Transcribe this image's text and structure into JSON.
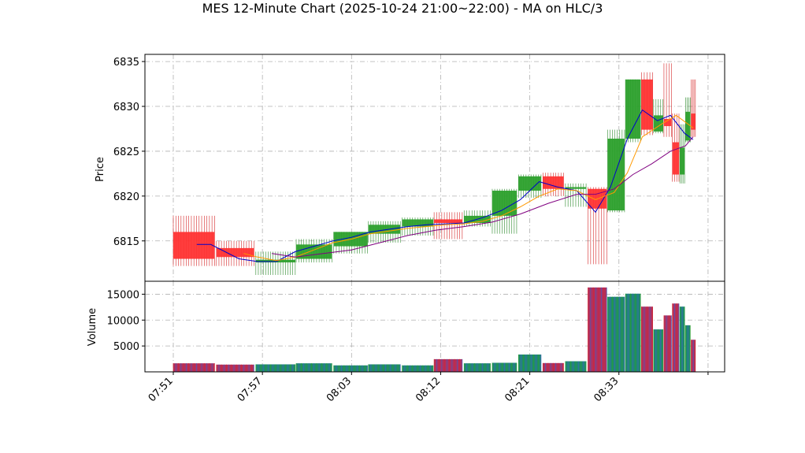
{
  "chart_data": {
    "type": "candlestick",
    "title": "MES 12-Minute Chart (2025-10-24 21:00~22:00) - MA on HLC/3",
    "price_panel": {
      "ylabel": "Price",
      "ylim": [
        6810.5,
        6835.8
      ],
      "yticks": [
        6815,
        6820,
        6825,
        6830,
        6835
      ],
      "grid": true
    },
    "volume_panel": {
      "ylabel": "Volume",
      "ylim": [
        0,
        17500
      ],
      "yticks": [
        5000,
        10000,
        15000
      ],
      "grid": true
    },
    "x_index_range": [
      0,
      56
    ],
    "xticks": [
      {
        "pos": 0,
        "label": "07:51"
      },
      {
        "pos": 9.5,
        "label": "07:57"
      },
      {
        "pos": 19,
        "label": "08:03"
      },
      {
        "pos": 28.5,
        "label": "08:12"
      },
      {
        "pos": 38,
        "label": "08:21"
      },
      {
        "pos": 47.5,
        "label": "08:33"
      },
      {
        "pos": 57,
        "label": ""
      }
    ],
    "candles": [
      {
        "x": 0,
        "w": 4.4,
        "o": 6816.0,
        "h": 6817.8,
        "l": 6812.2,
        "c": 6813.0
      },
      {
        "x": 4.6,
        "w": 4.0,
        "o": 6814.2,
        "h": 6815.0,
        "l": 6812.2,
        "c": 6813.2
      },
      {
        "x": 8.8,
        "w": 4.2,
        "o": 6812.6,
        "h": 6813.8,
        "l": 6811.2,
        "c": 6812.9
      },
      {
        "x": 13.1,
        "w": 3.8,
        "o": 6813.0,
        "h": 6815.2,
        "l": 6812.6,
        "c": 6814.6
      },
      {
        "x": 17.1,
        "w": 3.6,
        "o": 6814.4,
        "h": 6816.0,
        "l": 6813.6,
        "c": 6816.0
      },
      {
        "x": 20.8,
        "w": 3.4,
        "o": 6815.8,
        "h": 6817.2,
        "l": 6814.8,
        "c": 6816.8
      },
      {
        "x": 24.4,
        "w": 3.3,
        "o": 6816.6,
        "h": 6817.6,
        "l": 6815.6,
        "c": 6817.4
      },
      {
        "x": 27.8,
        "w": 3.0,
        "o": 6817.4,
        "h": 6818.2,
        "l": 6815.2,
        "c": 6817.0
      },
      {
        "x": 31.0,
        "w": 2.8,
        "o": 6817.0,
        "h": 6818.4,
        "l": 6816.6,
        "c": 6817.8
      },
      {
        "x": 34.0,
        "w": 2.6,
        "o": 6817.8,
        "h": 6820.8,
        "l": 6815.8,
        "c": 6820.6
      },
      {
        "x": 36.8,
        "w": 2.4,
        "o": 6820.6,
        "h": 6822.4,
        "l": 6819.8,
        "c": 6822.2
      },
      {
        "x": 39.4,
        "w": 2.2,
        "o": 6822.2,
        "h": 6822.6,
        "l": 6820.0,
        "c": 6820.8
      },
      {
        "x": 41.8,
        "w": 2.2,
        "o": 6820.8,
        "h": 6821.4,
        "l": 6818.8,
        "c": 6821.0
      },
      {
        "x": 44.2,
        "w": 2.0,
        "o": 6820.8,
        "h": 6821.0,
        "l": 6812.4,
        "c": 6818.6
      },
      {
        "x": 46.3,
        "w": 1.8,
        "o": 6818.4,
        "h": 6827.4,
        "l": 6818.2,
        "c": 6826.4
      },
      {
        "x": 48.2,
        "w": 1.6,
        "o": 6826.4,
        "h": 6833.0,
        "l": 6826.0,
        "c": 6833.0
      },
      {
        "x": 49.9,
        "w": 1.2,
        "o": 6833.0,
        "h": 6833.8,
        "l": 6826.8,
        "c": 6827.4
      },
      {
        "x": 51.2,
        "w": 1.0,
        "o": 6827.2,
        "h": 6830.8,
        "l": 6827.0,
        "c": 6829.0
      },
      {
        "x": 52.3,
        "w": 0.8,
        "o": 6828.6,
        "h": 6834.8,
        "l": 6826.6,
        "c": 6827.8
      },
      {
        "x": 53.2,
        "w": 0.7,
        "o": 6826.0,
        "h": 6829.2,
        "l": 6821.6,
        "c": 6822.4
      },
      {
        "x": 54.0,
        "w": 0.5,
        "o": 6822.4,
        "h": 6828.0,
        "l": 6821.4,
        "c": 6825.4
      },
      {
        "x": 54.6,
        "w": 0.5,
        "o": 6826.2,
        "h": 6831.0,
        "l": 6826.0,
        "c": 6829.4
      },
      {
        "x": 55.2,
        "w": 0.45,
        "o": 6829.2,
        "h": 6833.0,
        "l": 6826.6,
        "c": 6827.4
      }
    ],
    "volumes": [
      1650,
      1400,
      1450,
      1650,
      1250,
      1450,
      1250,
      2450,
      1650,
      1750,
      3350,
      1700,
      2050,
      16300,
      14500,
      15100,
      12600,
      8200,
      10900,
      13200,
      12600,
      9000,
      6200
    ],
    "ma_series": [
      {
        "color": "#0000cc",
        "points": [
          [
            2.5,
            6814.6
          ],
          [
            4.0,
            6814.6
          ],
          [
            7.0,
            6813.0
          ],
          [
            9.0,
            6812.7
          ],
          [
            11.0,
            6812.7
          ],
          [
            13.0,
            6813.8
          ],
          [
            15.0,
            6814.4
          ],
          [
            17.0,
            6815.0
          ],
          [
            19.0,
            6815.4
          ],
          [
            21.0,
            6816.0
          ],
          [
            23.0,
            6816.3
          ],
          [
            25.0,
            6816.6
          ],
          [
            27.0,
            6816.8
          ],
          [
            29.0,
            6816.9
          ],
          [
            31.0,
            6817.0
          ],
          [
            33.0,
            6817.6
          ],
          [
            35.0,
            6818.4
          ],
          [
            37.0,
            6819.6
          ],
          [
            39.0,
            6821.6
          ],
          [
            41.0,
            6821.0
          ],
          [
            43.0,
            6820.6
          ],
          [
            45.0,
            6818.2
          ],
          [
            46.6,
            6821.0
          ],
          [
            48.4,
            6826.4
          ],
          [
            50.0,
            6829.6
          ],
          [
            51.6,
            6828.4
          ],
          [
            53.0,
            6829.0
          ],
          [
            54.5,
            6827.0
          ],
          [
            55.4,
            6826.3
          ]
        ]
      },
      {
        "color": "#ff9900",
        "points": [
          [
            7.5,
            6813.6
          ],
          [
            9.0,
            6813.2
          ],
          [
            11.0,
            6812.8
          ],
          [
            13.0,
            6813.2
          ],
          [
            15.0,
            6814.0
          ],
          [
            17.0,
            6814.8
          ],
          [
            19.0,
            6815.2
          ],
          [
            21.0,
            6815.8
          ],
          [
            23.0,
            6816.1
          ],
          [
            25.0,
            6816.4
          ],
          [
            27.0,
            6816.6
          ],
          [
            29.0,
            6816.8
          ],
          [
            31.0,
            6816.9
          ],
          [
            33.0,
            6817.2
          ],
          [
            35.0,
            6817.8
          ],
          [
            37.0,
            6818.8
          ],
          [
            39.0,
            6820.0
          ],
          [
            41.0,
            6820.8
          ],
          [
            43.0,
            6820.6
          ],
          [
            45.0,
            6819.6
          ],
          [
            47.0,
            6820.4
          ],
          [
            48.4,
            6822.6
          ],
          [
            50.0,
            6826.6
          ],
          [
            52.0,
            6828.0
          ],
          [
            53.6,
            6829.0
          ],
          [
            55.4,
            6827.6
          ]
        ]
      },
      {
        "color": "#800080",
        "points": [
          [
            10.5,
            6813.6
          ],
          [
            13.0,
            6813.2
          ],
          [
            16.0,
            6813.6
          ],
          [
            19.0,
            6814.0
          ],
          [
            22.0,
            6814.8
          ],
          [
            25.0,
            6815.6
          ],
          [
            28.0,
            6816.2
          ],
          [
            31.0,
            6816.6
          ],
          [
            34.0,
            6817.1
          ],
          [
            37.0,
            6818.0
          ],
          [
            40.0,
            6819.2
          ],
          [
            43.0,
            6820.2
          ],
          [
            45.0,
            6820.2
          ],
          [
            47.0,
            6820.8
          ],
          [
            49.0,
            6822.4
          ],
          [
            51.0,
            6823.6
          ],
          [
            53.0,
            6825.0
          ],
          [
            54.6,
            6825.6
          ],
          [
            55.4,
            6826.6
          ]
        ]
      }
    ]
  }
}
